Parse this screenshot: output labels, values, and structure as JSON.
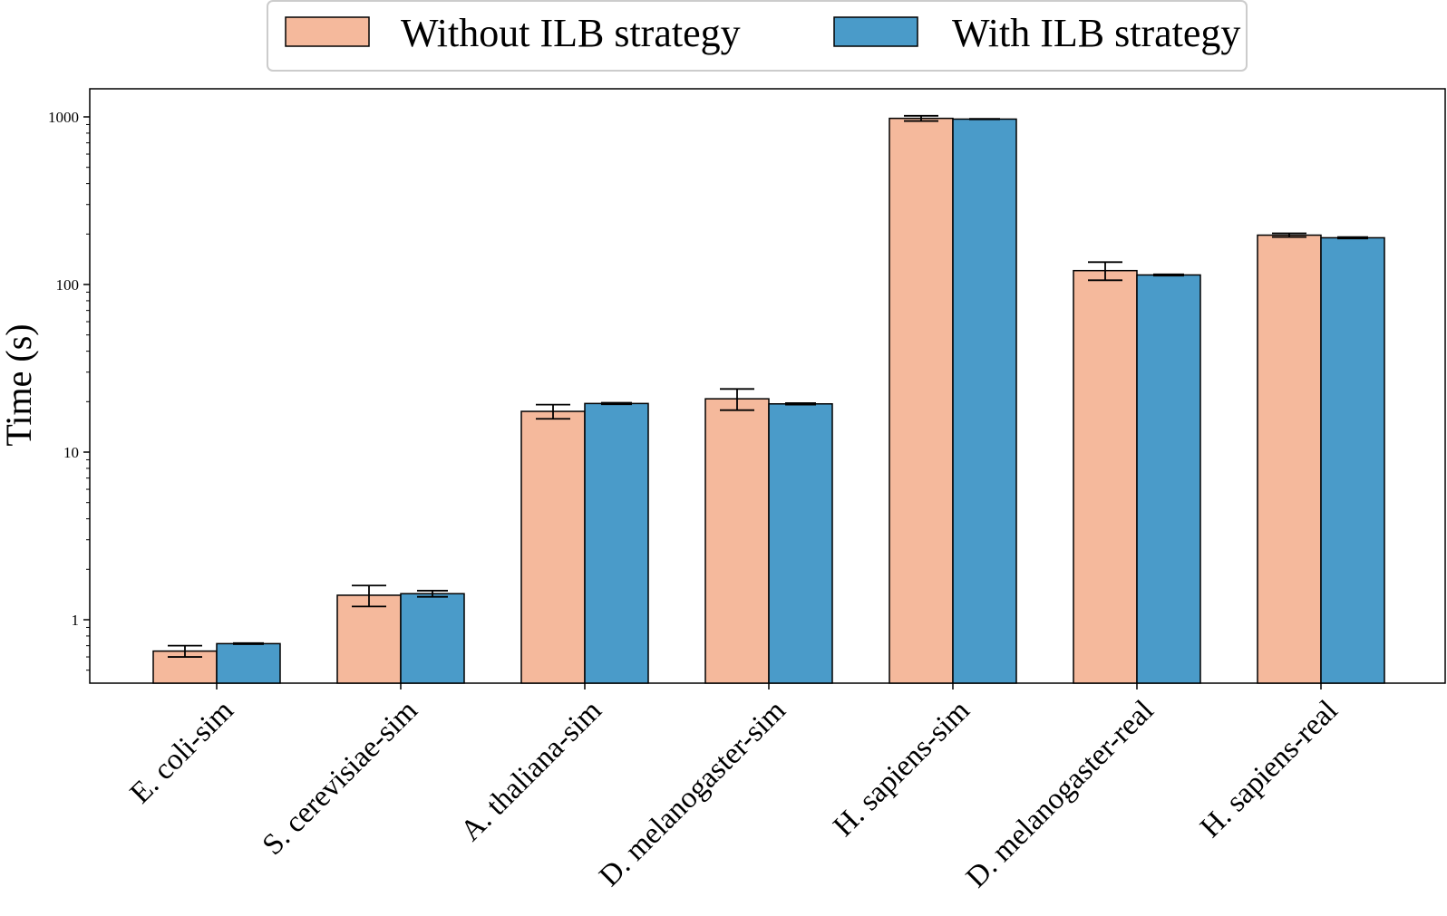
{
  "chart_data": {
    "type": "bar",
    "title": "",
    "xlabel": "",
    "ylabel": "Time (s)",
    "yscale": "log",
    "ylim": [
      0.4,
      1400
    ],
    "yticks": [
      1,
      10,
      100,
      1000
    ],
    "ytick_labels": [
      "1",
      "10",
      "100",
      "1000"
    ],
    "grid": false,
    "legend_position": "top-center",
    "categories": [
      "E. coli-sim",
      "S. cerevisiae-sim",
      "A. thaliana-sim",
      "D. melanogaster-sim",
      "H. sapiens-sim",
      "D. melanogaster-real",
      "H. sapiens-real"
    ],
    "series": [
      {
        "name": "Without ILB strategy",
        "color": "#f5b99c",
        "values": [
          0.65,
          1.4,
          17.5,
          20.8,
          980,
          121,
          197
        ],
        "errors": [
          0.05,
          0.2,
          1.7,
          3.0,
          35,
          15,
          5
        ]
      },
      {
        "name": "With ILB strategy",
        "color": "#4a9bc9",
        "values": [
          0.72,
          1.43,
          19.5,
          19.4,
          970,
          114,
          190
        ],
        "errors": [
          0.005,
          0.06,
          0.2,
          0.2,
          3,
          1,
          2
        ]
      }
    ]
  }
}
